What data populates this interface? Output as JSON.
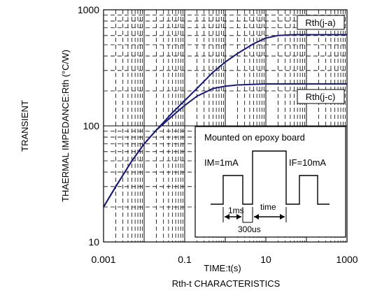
{
  "chart_data": {
    "type": "line",
    "title": "Rth-t CHARACTERISTICS",
    "xlabel": "TIME:t(s)",
    "ylabel_outer": "TRANSIENT",
    "ylabel": "THAERMAL IMPEDANCE:Rth (°C/W)",
    "xscale": "log",
    "yscale": "log",
    "xlim": [
      0.001,
      1000
    ],
    "ylim": [
      10,
      1000
    ],
    "x_ticks": [
      "0.001",
      "0.1",
      "10",
      "1000"
    ],
    "y_ticks": [
      "10",
      "100",
      "1000"
    ],
    "grid": true,
    "series": [
      {
        "name": "Rth(j-a)",
        "color": "#1a1a7a",
        "x": [
          0.001,
          0.002,
          0.005,
          0.01,
          0.02,
          0.05,
          0.1,
          0.2,
          0.5,
          1,
          2,
          5,
          10,
          20,
          50,
          100,
          200,
          500,
          1000
        ],
        "y": [
          20,
          30,
          50,
          70,
          92,
          130,
          165,
          210,
          290,
          355,
          420,
          510,
          570,
          600,
          610,
          610,
          610,
          610,
          610
        ]
      },
      {
        "name": "Rth(j-c)",
        "color": "#1a1a7a",
        "x": [
          0.001,
          0.002,
          0.005,
          0.01,
          0.02,
          0.05,
          0.1,
          0.2,
          0.5,
          1,
          2,
          5,
          10,
          20,
          50,
          100,
          200,
          500,
          1000
        ],
        "y": [
          20,
          30,
          50,
          70,
          92,
          122,
          150,
          180,
          210,
          220,
          225,
          228,
          230,
          230,
          230,
          230,
          230,
          230,
          230
        ]
      }
    ]
  },
  "inset": {
    "title": "Mounted on epoxy board",
    "im_label": "IM=1mA",
    "if_label": "IF=10mA",
    "t1_label": "1ms",
    "time_label": "time",
    "t2_label": "300us"
  }
}
